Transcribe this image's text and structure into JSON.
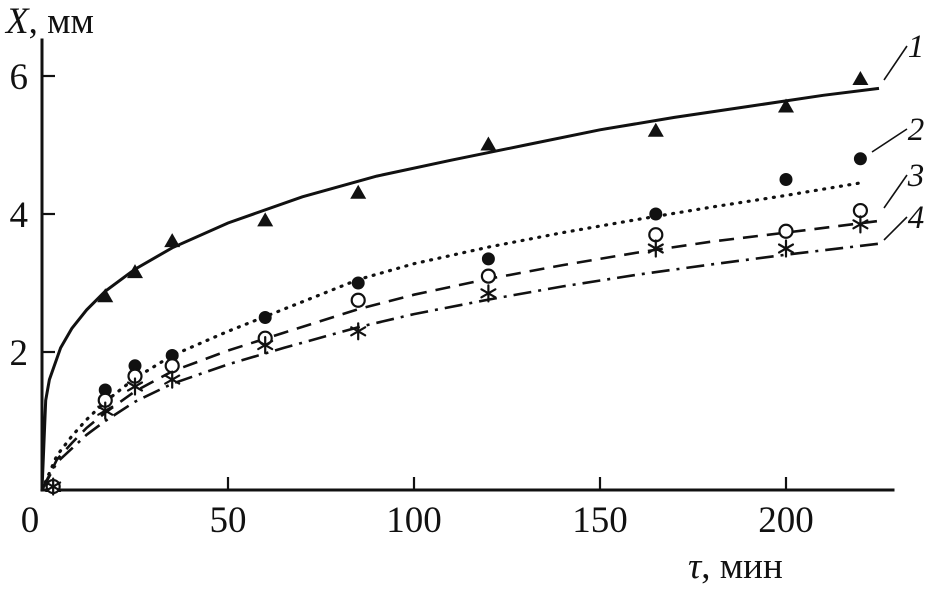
{
  "figure": {
    "background_color": "#ffffff",
    "foreground_color": "#111111"
  },
  "chart_data": {
    "type": "scatter",
    "title": "",
    "xlabel": "τ, мин",
    "ylabel": "X, мм",
    "xlabel_parts": {
      "symbol": "τ",
      "rest": ", мин"
    },
    "ylabel_parts": {
      "symbol": "X",
      "rest": ", мм"
    },
    "xlim": [
      0,
      230
    ],
    "ylim": [
      0,
      6.5
    ],
    "x_ticks": [
      0,
      50,
      100,
      150,
      200
    ],
    "y_ticks": [
      2,
      4,
      6
    ],
    "grid": false,
    "legend_position": "curve-end-labels-right",
    "series": [
      {
        "label": "1",
        "marker": "triangle-filled",
        "line_style": "solid",
        "points": [
          [
            3,
            0.05
          ],
          [
            17,
            2.8
          ],
          [
            25,
            3.15
          ],
          [
            35,
            3.6
          ],
          [
            60,
            3.9
          ],
          [
            85,
            4.3
          ],
          [
            120,
            5.0
          ],
          [
            165,
            5.2
          ],
          [
            200,
            5.55
          ],
          [
            220,
            5.95
          ]
        ],
        "curve": [
          [
            0,
            0
          ],
          [
            1,
            1.3
          ],
          [
            2,
            1.6
          ],
          [
            5,
            2.06
          ],
          [
            8,
            2.34
          ],
          [
            12,
            2.61
          ],
          [
            17,
            2.88
          ],
          [
            25,
            3.2
          ],
          [
            35,
            3.51
          ],
          [
            50,
            3.87
          ],
          [
            70,
            4.25
          ],
          [
            90,
            4.55
          ],
          [
            110,
            4.78
          ],
          [
            130,
            5.0
          ],
          [
            150,
            5.22
          ],
          [
            170,
            5.4
          ],
          [
            190,
            5.56
          ],
          [
            210,
            5.72
          ],
          [
            225,
            5.82
          ]
        ]
      },
      {
        "label": "2",
        "marker": "circle-filled",
        "line_style": "dotted",
        "points": [
          [
            3,
            0.05
          ],
          [
            17,
            1.45
          ],
          [
            25,
            1.8
          ],
          [
            35,
            1.95
          ],
          [
            60,
            2.5
          ],
          [
            85,
            3.0
          ],
          [
            120,
            3.35
          ],
          [
            165,
            4.0
          ],
          [
            200,
            4.5
          ],
          [
            220,
            4.8
          ]
        ],
        "curve": [
          [
            0,
            0
          ],
          [
            4,
            0.5
          ],
          [
            8,
            0.78
          ],
          [
            12,
            1.02
          ],
          [
            17,
            1.28
          ],
          [
            25,
            1.62
          ],
          [
            35,
            1.95
          ],
          [
            50,
            2.3
          ],
          [
            65,
            2.62
          ],
          [
            85,
            3.05
          ],
          [
            100,
            3.28
          ],
          [
            120,
            3.52
          ],
          [
            140,
            3.73
          ],
          [
            160,
            3.92
          ],
          [
            180,
            4.1
          ],
          [
            200,
            4.27
          ],
          [
            220,
            4.45
          ]
        ]
      },
      {
        "label": "3",
        "marker": "circle-open",
        "line_style": "dashed",
        "points": [
          [
            3,
            0.05
          ],
          [
            17,
            1.3
          ],
          [
            25,
            1.65
          ],
          [
            35,
            1.8
          ],
          [
            60,
            2.2
          ],
          [
            85,
            2.75
          ],
          [
            120,
            3.1
          ],
          [
            165,
            3.7
          ],
          [
            200,
            3.75
          ],
          [
            220,
            4.05
          ]
        ],
        "curve": [
          [
            0,
            0
          ],
          [
            4,
            0.44
          ],
          [
            8,
            0.68
          ],
          [
            12,
            0.9
          ],
          [
            17,
            1.12
          ],
          [
            25,
            1.43
          ],
          [
            35,
            1.72
          ],
          [
            50,
            2.02
          ],
          [
            65,
            2.28
          ],
          [
            85,
            2.62
          ],
          [
            100,
            2.83
          ],
          [
            120,
            3.06
          ],
          [
            140,
            3.26
          ],
          [
            160,
            3.44
          ],
          [
            180,
            3.6
          ],
          [
            200,
            3.73
          ],
          [
            225,
            3.9
          ]
        ]
      },
      {
        "label": "4",
        "marker": "asterisk",
        "line_style": "dashdot",
        "points": [
          [
            3,
            0.05
          ],
          [
            17,
            1.15
          ],
          [
            25,
            1.5
          ],
          [
            35,
            1.6
          ],
          [
            60,
            2.1
          ],
          [
            85,
            2.3
          ],
          [
            120,
            2.85
          ],
          [
            165,
            3.5
          ],
          [
            200,
            3.5
          ],
          [
            220,
            3.85
          ]
        ],
        "curve": [
          [
            0,
            0
          ],
          [
            4,
            0.4
          ],
          [
            8,
            0.6
          ],
          [
            12,
            0.8
          ],
          [
            17,
            1.0
          ],
          [
            25,
            1.28
          ],
          [
            35,
            1.54
          ],
          [
            50,
            1.82
          ],
          [
            65,
            2.06
          ],
          [
            85,
            2.36
          ],
          [
            100,
            2.55
          ],
          [
            120,
            2.76
          ],
          [
            140,
            2.95
          ],
          [
            160,
            3.12
          ],
          [
            180,
            3.27
          ],
          [
            200,
            3.41
          ],
          [
            225,
            3.57
          ]
        ]
      }
    ]
  }
}
